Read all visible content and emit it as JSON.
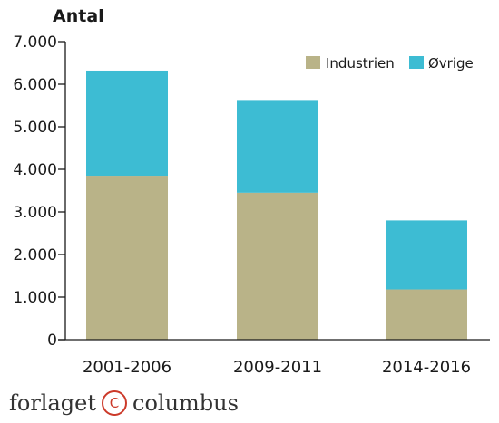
{
  "chart_data": {
    "type": "bar",
    "stacked": true,
    "ylabel": "Antal",
    "categories": [
      "2001-2006",
      "2009-2011",
      "2014-2016"
    ],
    "series": [
      {
        "name": "Industrien",
        "color": "#b9b388",
        "values": [
          3850,
          3450,
          1180
        ]
      },
      {
        "name": "Øvrige",
        "color": "#3dbcd3",
        "values": [
          2470,
          2180,
          1620
        ]
      }
    ],
    "ylim": [
      0,
      7000
    ],
    "yticks": [
      "0",
      "1.000",
      "2.000",
      "3.000",
      "4.000",
      "5.000",
      "6.000",
      "7.000"
    ],
    "grid": false,
    "legend_position": "top-right"
  },
  "branding": {
    "left": "forlaget",
    "mark": "C",
    "right": "columbus"
  },
  "colors": {
    "axis": "#1a1a1a"
  }
}
